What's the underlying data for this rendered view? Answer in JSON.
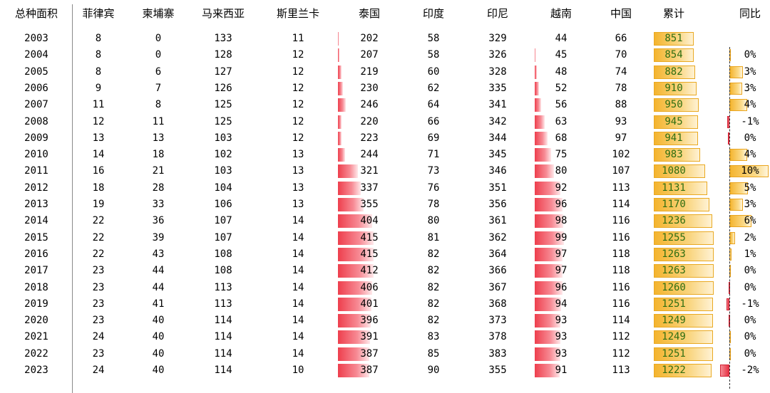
{
  "table": {
    "headers": [
      "总种面积",
      "菲律宾",
      "柬埔寨",
      "马来西亚",
      "斯里兰卡",
      "泰国",
      "印度",
      "印尼",
      "越南",
      "中国",
      "累计",
      "同比"
    ],
    "rows": [
      {
        "year": "2003",
        "values": [
          "8",
          "0",
          "133",
          "11",
          "202",
          "58",
          "329",
          "44",
          "66",
          "851"
        ],
        "thailand": 202,
        "vietnam": 44,
        "total": 851,
        "yoy_label": "",
        "yoy": null
      },
      {
        "year": "2004",
        "values": [
          "8",
          "0",
          "128",
          "12",
          "207",
          "58",
          "326",
          "45",
          "70",
          "854"
        ],
        "thailand": 207,
        "vietnam": 45,
        "total": 854,
        "yoy_label": "0%",
        "yoy": 0.4
      },
      {
        "year": "2005",
        "values": [
          "8",
          "6",
          "127",
          "12",
          "219",
          "60",
          "328",
          "48",
          "74",
          "882"
        ],
        "thailand": 219,
        "vietnam": 48,
        "total": 882,
        "yoy_label": "3%",
        "yoy": 3.3
      },
      {
        "year": "2006",
        "values": [
          "9",
          "7",
          "126",
          "12",
          "230",
          "62",
          "335",
          "52",
          "78",
          "910"
        ],
        "thailand": 230,
        "vietnam": 52,
        "total": 910,
        "yoy_label": "3%",
        "yoy": 3.2
      },
      {
        "year": "2007",
        "values": [
          "11",
          "8",
          "125",
          "12",
          "246",
          "64",
          "341",
          "56",
          "88",
          "950"
        ],
        "thailand": 246,
        "vietnam": 56,
        "total": 950,
        "yoy_label": "4%",
        "yoy": 4.4
      },
      {
        "year": "2008",
        "values": [
          "12",
          "11",
          "125",
          "12",
          "220",
          "66",
          "342",
          "63",
          "93",
          "945"
        ],
        "thailand": 220,
        "vietnam": 63,
        "total": 945,
        "yoy_label": "-1%",
        "yoy": -0.5
      },
      {
        "year": "2009",
        "values": [
          "13",
          "13",
          "103",
          "12",
          "223",
          "69",
          "344",
          "68",
          "97",
          "941"
        ],
        "thailand": 223,
        "vietnam": 68,
        "total": 941,
        "yoy_label": "0%",
        "yoy": -0.4
      },
      {
        "year": "2010",
        "values": [
          "14",
          "18",
          "102",
          "13",
          "244",
          "71",
          "345",
          "75",
          "102",
          "983"
        ],
        "thailand": 244,
        "vietnam": 75,
        "total": 983,
        "yoy_label": "4%",
        "yoy": 4.5
      },
      {
        "year": "2011",
        "values": [
          "16",
          "21",
          "103",
          "13",
          "321",
          "73",
          "346",
          "80",
          "107",
          "1080"
        ],
        "thailand": 321,
        "vietnam": 80,
        "total": 1080,
        "yoy_label": "10%",
        "yoy": 9.9
      },
      {
        "year": "2012",
        "values": [
          "18",
          "28",
          "104",
          "13",
          "337",
          "76",
          "351",
          "92",
          "113",
          "1131"
        ],
        "thailand": 337,
        "vietnam": 92,
        "total": 1131,
        "yoy_label": "5%",
        "yoy": 4.7
      },
      {
        "year": "2013",
        "values": [
          "19",
          "33",
          "106",
          "13",
          "355",
          "78",
          "356",
          "96",
          "114",
          "1170"
        ],
        "thailand": 355,
        "vietnam": 96,
        "total": 1170,
        "yoy_label": "3%",
        "yoy": 3.4
      },
      {
        "year": "2014",
        "values": [
          "22",
          "36",
          "107",
          "14",
          "404",
          "80",
          "361",
          "98",
          "116",
          "1236"
        ],
        "thailand": 404,
        "vietnam": 98,
        "total": 1236,
        "yoy_label": "6%",
        "yoy": 5.6
      },
      {
        "year": "2015",
        "values": [
          "22",
          "39",
          "107",
          "14",
          "415",
          "81",
          "362",
          "99",
          "116",
          "1255"
        ],
        "thailand": 415,
        "vietnam": 99,
        "total": 1255,
        "yoy_label": "2%",
        "yoy": 1.5
      },
      {
        "year": "2016",
        "values": [
          "22",
          "43",
          "108",
          "14",
          "415",
          "82",
          "364",
          "97",
          "118",
          "1263"
        ],
        "thailand": 415,
        "vietnam": 97,
        "total": 1263,
        "yoy_label": "1%",
        "yoy": 0.6
      },
      {
        "year": "2017",
        "values": [
          "23",
          "44",
          "108",
          "14",
          "412",
          "82",
          "366",
          "97",
          "118",
          "1263"
        ],
        "thailand": 412,
        "vietnam": 97,
        "total": 1263,
        "yoy_label": "0%",
        "yoy": 0.0
      },
      {
        "year": "2018",
        "values": [
          "23",
          "44",
          "113",
          "14",
          "406",
          "82",
          "367",
          "96",
          "116",
          "1260"
        ],
        "thailand": 406,
        "vietnam": 96,
        "total": 1260,
        "yoy_label": "0%",
        "yoy": -0.2
      },
      {
        "year": "2019",
        "values": [
          "23",
          "41",
          "113",
          "14",
          "401",
          "82",
          "368",
          "94",
          "116",
          "1251"
        ],
        "thailand": 401,
        "vietnam": 94,
        "total": 1251,
        "yoy_label": "-1%",
        "yoy": -0.7
      },
      {
        "year": "2020",
        "values": [
          "23",
          "40",
          "114",
          "14",
          "396",
          "82",
          "373",
          "93",
          "114",
          "1249"
        ],
        "thailand": 396,
        "vietnam": 93,
        "total": 1249,
        "yoy_label": "0%",
        "yoy": -0.2
      },
      {
        "year": "2021",
        "values": [
          "24",
          "40",
          "114",
          "14",
          "391",
          "83",
          "378",
          "93",
          "112",
          "1249"
        ],
        "thailand": 391,
        "vietnam": 93,
        "total": 1249,
        "yoy_label": "0%",
        "yoy": 0.0
      },
      {
        "year": "2022",
        "values": [
          "23",
          "40",
          "114",
          "14",
          "387",
          "85",
          "383",
          "93",
          "112",
          "1251"
        ],
        "thailand": 387,
        "vietnam": 93,
        "total": 1251,
        "yoy_label": "0%",
        "yoy": 0.2
      },
      {
        "year": "2023",
        "values": [
          "24",
          "40",
          "114",
          "10",
          "387",
          "90",
          "355",
          "91",
          "113",
          "1222"
        ],
        "thailand": 387,
        "vietnam": 91,
        "total": 1222,
        "yoy_label": "-2%",
        "yoy": -2.3
      }
    ]
  },
  "colors": {
    "data_bar_red": "#ee3f4d",
    "data_bar_gold": "#f4b42e",
    "total_text": "#2f6e12",
    "negative_bar": "#e63345"
  }
}
